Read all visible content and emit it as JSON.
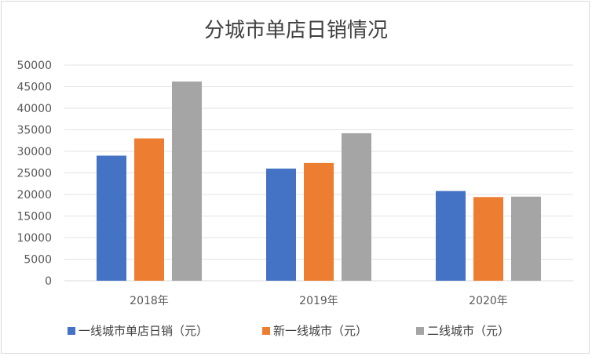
{
  "chart_data": {
    "type": "bar",
    "title": "分城市单店日销情况",
    "categories": [
      "2018年",
      "2019年",
      "2020年"
    ],
    "series": [
      {
        "name": "一线城市单店日销（元）",
        "color": "#4472c4",
        "values": [
          29000,
          26000,
          20800
        ]
      },
      {
        "name": "新一线城市（元）",
        "color": "#ed7d31",
        "values": [
          33000,
          27300,
          19400
        ]
      },
      {
        "name": "二线城市（元）",
        "color": "#a5a5a5",
        "values": [
          46200,
          34200,
          19500
        ]
      }
    ],
    "ylim": [
      0,
      50000
    ],
    "yticks": [
      "0",
      "5000",
      "10000",
      "15000",
      "20000",
      "25000",
      "30000",
      "35000",
      "40000",
      "45000",
      "50000"
    ],
    "grid": true,
    "legend_position": "bottom"
  }
}
